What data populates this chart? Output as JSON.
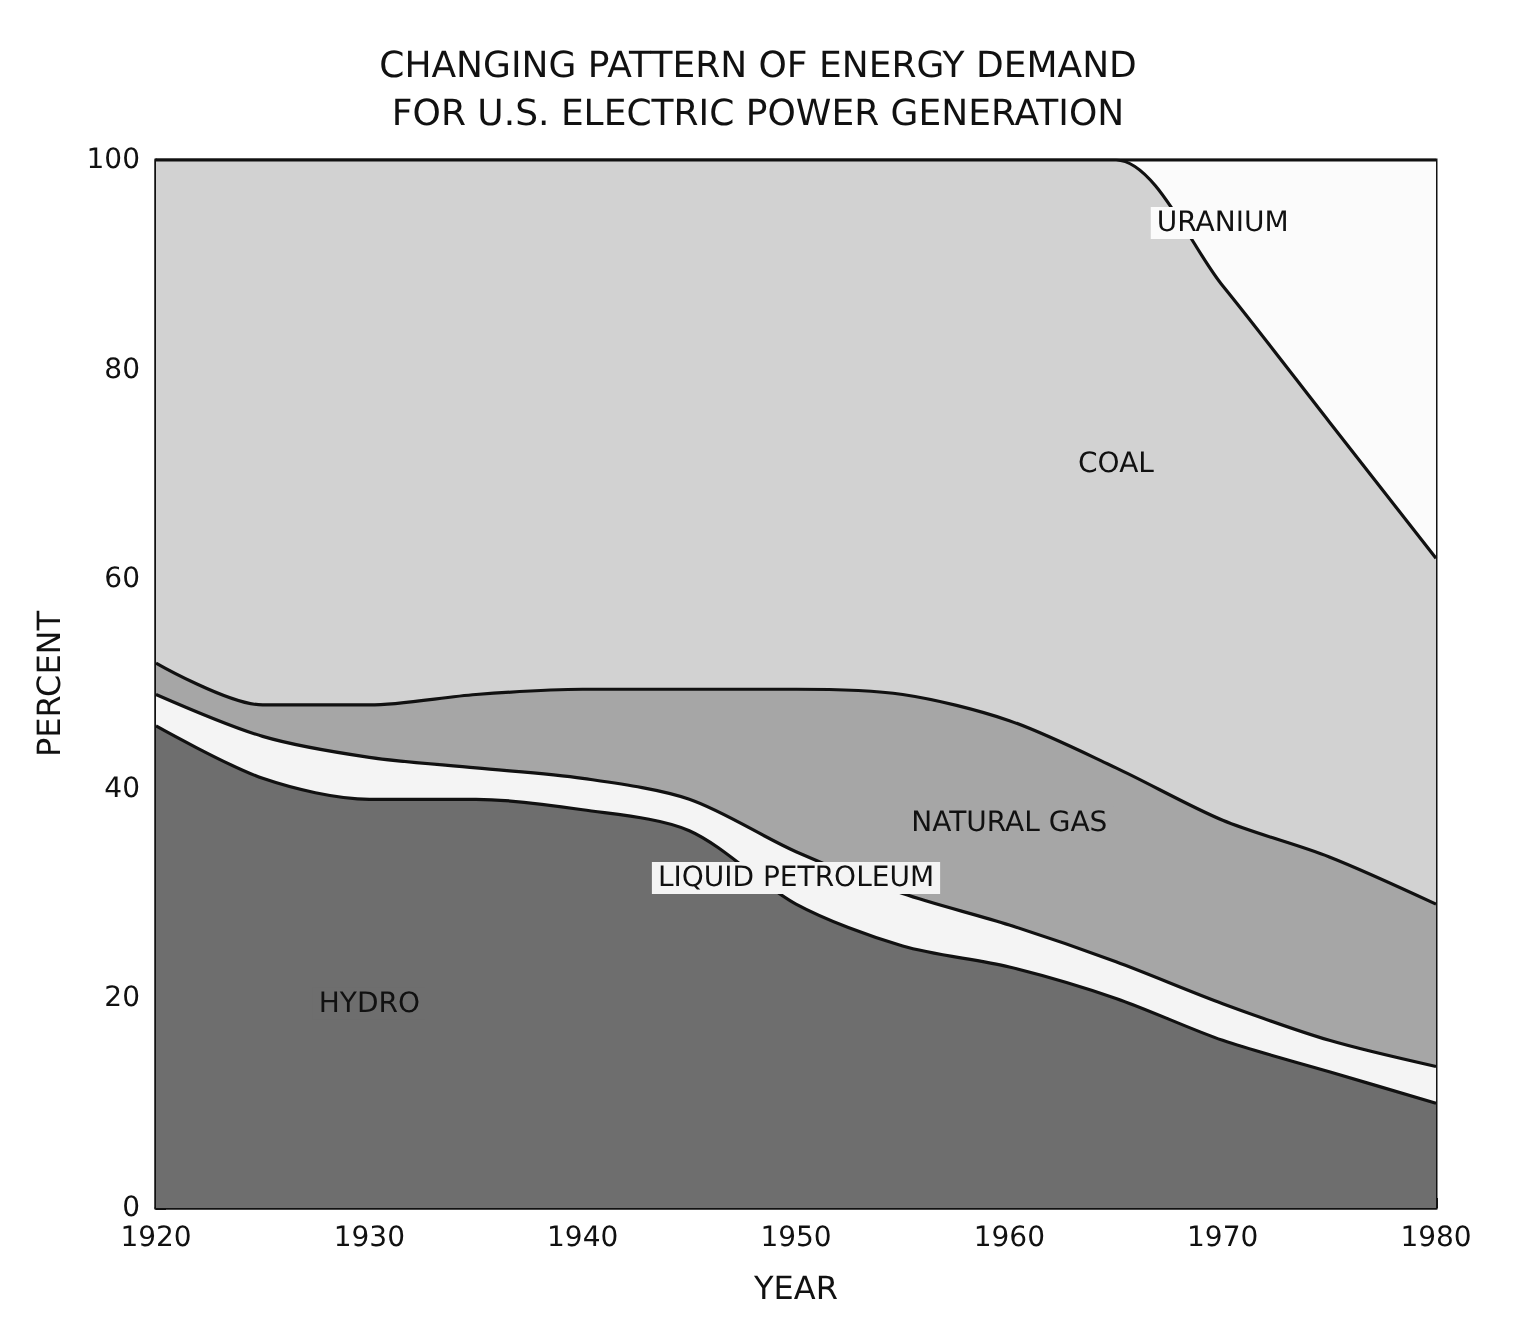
{
  "chart_data": {
    "type": "area",
    "title": "CHANGING PATTERN OF ENERGY DEMAND\nFOR U.S. ELECTRIC POWER GENERATION",
    "xlabel": "YEAR",
    "ylabel": "PERCENT",
    "stacked": true,
    "x": [
      1920,
      1925,
      1930,
      1935,
      1940,
      1945,
      1950,
      1955,
      1960,
      1965,
      1970,
      1975,
      1980
    ],
    "series": [
      {
        "name": "HYDRO",
        "color": "#6e6e6e",
        "values": [
          46,
          41,
          39,
          39,
          38,
          36,
          29,
          25,
          23,
          20,
          16,
          13,
          10
        ]
      },
      {
        "name": "LIQUID PETROLEUM",
        "color": "#f4f4f4",
        "values": [
          3,
          4,
          4,
          3,
          3,
          3,
          5,
          5,
          4,
          3.5,
          3.5,
          3,
          3.5
        ]
      },
      {
        "name": "NATURAL GAS",
        "color": "#a6a6a6",
        "values": [
          3,
          3,
          5,
          7,
          8.5,
          10.5,
          15.5,
          19,
          19.5,
          18.5,
          17.5,
          17.5,
          15.5
        ]
      },
      {
        "name": "COAL",
        "color": "#d2d2d2",
        "values": [
          48,
          52,
          52,
          51,
          50.5,
          50.5,
          50.5,
          51,
          53.5,
          58,
          51,
          41.5,
          33
        ]
      },
      {
        "name": "URANIUM",
        "color": "#fbfbfb",
        "values": [
          0,
          0,
          0,
          0,
          0,
          0,
          0,
          0,
          0,
          0,
          12,
          25,
          38
        ]
      }
    ],
    "xlim": [
      1920,
      1980
    ],
    "xticks": [
      1920,
      1930,
      1940,
      1950,
      1960,
      1970,
      1980
    ],
    "ylim": [
      0,
      100
    ],
    "yticks": [
      0,
      20,
      40,
      60,
      80,
      100
    ],
    "grid": false,
    "legend": false
  }
}
